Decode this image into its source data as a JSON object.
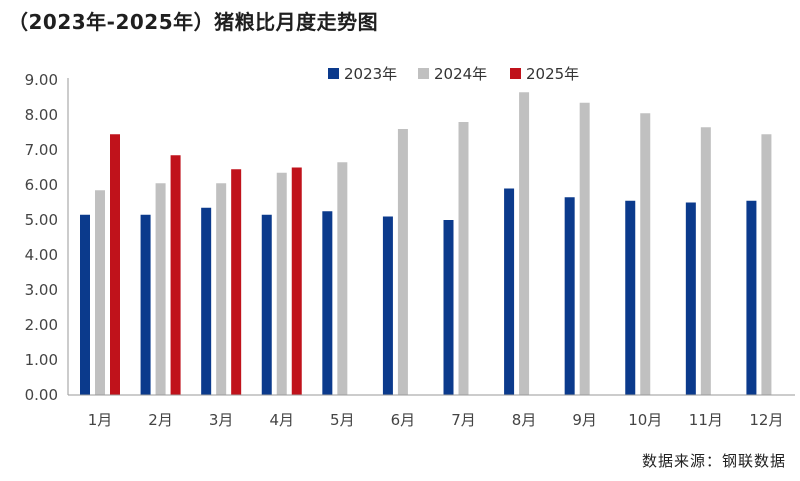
{
  "header": {
    "title": "（2023年-2025年）猪粮比月度走势图"
  },
  "footer": {
    "source": "数据来源：钢联数据"
  },
  "chart_data": {
    "type": "bar",
    "title": "（2023年-2025年）猪粮比月度走势图",
    "xlabel": "",
    "ylabel": "",
    "ylim": [
      0,
      9
    ],
    "yticks": [
      "0.00",
      "1.00",
      "2.00",
      "3.00",
      "4.00",
      "5.00",
      "6.00",
      "7.00",
      "8.00",
      "9.00"
    ],
    "categories": [
      "1月",
      "2月",
      "3月",
      "4月",
      "5月",
      "6月",
      "7月",
      "8月",
      "9月",
      "10月",
      "11月",
      "12月"
    ],
    "legend_position": "top-right",
    "grid": false,
    "series": [
      {
        "name": "2023年",
        "color": "#0b3a8c",
        "values": [
          5.15,
          5.15,
          5.35,
          5.15,
          5.25,
          5.1,
          5.0,
          5.9,
          5.65,
          5.55,
          5.5,
          5.55
        ]
      },
      {
        "name": "2024年",
        "color": "#c0c0c0",
        "values": [
          5.85,
          6.05,
          6.05,
          6.35,
          6.65,
          7.6,
          7.8,
          8.65,
          8.35,
          8.05,
          7.65,
          7.45
        ]
      },
      {
        "name": "2025年",
        "color": "#c0121b",
        "values": [
          7.45,
          6.85,
          6.45,
          6.5,
          null,
          null,
          null,
          null,
          null,
          null,
          null,
          null
        ]
      }
    ]
  }
}
